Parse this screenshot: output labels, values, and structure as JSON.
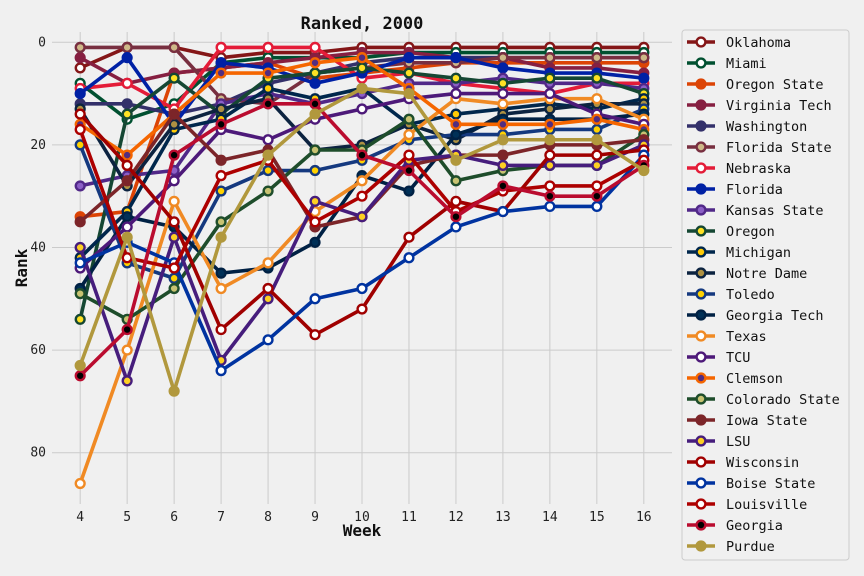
{
  "chart_data": {
    "type": "line",
    "title": "Ranked, 2000",
    "xlabel": "Week",
    "ylabel": "Rank",
    "x": [
      4,
      5,
      6,
      7,
      8,
      9,
      10,
      11,
      12,
      13,
      14,
      15,
      16
    ],
    "xlim": [
      3.4,
      16.6
    ],
    "ylim": [
      -2,
      90
    ],
    "y_inverted": true,
    "yticks": [
      0,
      20,
      40,
      60,
      80
    ],
    "grid": true,
    "legend_position": "right",
    "series": [
      {
        "name": "Oklahoma",
        "line_color": "#841617",
        "marker_fill": "#ffffff",
        "values": [
          5,
          1,
          1,
          3,
          2,
          2,
          1,
          1,
          1,
          1,
          1,
          1,
          1
        ]
      },
      {
        "name": "Miami",
        "line_color": "#005030",
        "marker_fill": "#ffffff",
        "values": [
          8,
          15,
          12,
          4,
          3,
          3,
          3,
          2,
          2,
          2,
          2,
          2,
          2
        ]
      },
      {
        "name": "Oregon State",
        "line_color": "#dc4405",
        "marker_fill": "#dc4405",
        "values": [
          34,
          33,
          6,
          5,
          4,
          7,
          6,
          5,
          4,
          4,
          4,
          4,
          4
        ]
      },
      {
        "name": "Virginia Tech",
        "line_color": "#861f41",
        "marker_fill": "#861f41",
        "values": [
          3,
          8,
          6,
          5,
          4,
          3,
          2,
          2,
          3,
          3,
          5,
          5,
          6
        ]
      },
      {
        "name": "Washington",
        "line_color": "#33306a",
        "marker_fill": "#33306a",
        "values": [
          12,
          12,
          14,
          12,
          8,
          6,
          4,
          3,
          3,
          3,
          3,
          3,
          3
        ]
      },
      {
        "name": "Florida State",
        "line_color": "#782f40",
        "marker_fill": "#ceb888",
        "values": [
          1,
          1,
          1,
          11,
          12,
          6,
          5,
          4,
          4,
          3,
          3,
          3,
          3
        ]
      },
      {
        "name": "Nebraska",
        "line_color": "#e41c38",
        "marker_fill": "#ffffff",
        "values": [
          9,
          8,
          13,
          1,
          1,
          1,
          7,
          6,
          8,
          9,
          10,
          8,
          8
        ]
      },
      {
        "name": "Florida",
        "line_color": "#0021a5",
        "marker_fill": "#0021a5",
        "values": [
          10,
          3,
          16,
          4,
          5,
          8,
          6,
          3,
          3,
          5,
          6,
          6,
          7
        ]
      },
      {
        "name": "Kansas State",
        "line_color": "#512888",
        "marker_fill": "#8b5fc6",
        "values": [
          28,
          26,
          25,
          12,
          10,
          12,
          10,
          8,
          8,
          7,
          8,
          8,
          9
        ]
      },
      {
        "name": "Oregon",
        "line_color": "#154733",
        "marker_fill": "#fee123",
        "values": [
          54,
          14,
          7,
          14,
          7,
          6,
          5,
          6,
          7,
          8,
          7,
          7,
          10
        ]
      },
      {
        "name": "Michigan",
        "line_color": "#00274c",
        "marker_fill": "#ffcb05",
        "values": [
          42,
          33,
          17,
          15,
          9,
          11,
          9,
          16,
          14,
          13,
          12,
          13,
          11
        ]
      },
      {
        "name": "Notre Dame",
        "line_color": "#0c2340",
        "marker_fill": "#ae9142",
        "values": [
          13,
          28,
          16,
          13,
          11,
          21,
          20,
          16,
          19,
          14,
          13,
          12,
          12
        ]
      },
      {
        "name": "Toledo",
        "line_color": "#15397f",
        "marker_fill": "#ffd200",
        "values": [
          20,
          43,
          46,
          29,
          25,
          25,
          23,
          19,
          18,
          18,
          17,
          17,
          13
        ]
      },
      {
        "name": "Georgia Tech",
        "line_color": "#002144",
        "marker_fill": "#003057",
        "values": [
          48,
          34,
          36,
          45,
          44,
          39,
          26,
          29,
          18,
          15,
          15,
          15,
          14
        ]
      },
      {
        "name": "Texas",
        "line_color": "#f08a24",
        "marker_fill": "#ffffff",
        "values": [
          86,
          60,
          31,
          48,
          43,
          33,
          27,
          18,
          11,
          12,
          11,
          11,
          15
        ]
      },
      {
        "name": "TCU",
        "line_color": "#4d1979",
        "marker_fill": "#ffffff",
        "values": [
          44,
          36,
          27,
          17,
          19,
          15,
          13,
          11,
          10,
          10,
          10,
          14,
          16
        ]
      },
      {
        "name": "Clemson",
        "line_color": "#f56600",
        "marker_fill": "#522d80",
        "values": [
          16,
          22,
          14,
          6,
          6,
          4,
          3,
          9,
          16,
          16,
          16,
          15,
          17
        ]
      },
      {
        "name": "Colorado State",
        "line_color": "#1e4d2b",
        "marker_fill": "#c8c372",
        "values": [
          49,
          54,
          48,
          35,
          29,
          21,
          21,
          15,
          27,
          25,
          24,
          24,
          18
        ]
      },
      {
        "name": "Iowa State",
        "line_color": "#7c2529",
        "marker_fill": "#7c2529",
        "values": [
          35,
          27,
          14,
          23,
          21,
          36,
          34,
          24,
          22,
          22,
          20,
          20,
          19
        ]
      },
      {
        "name": "LSU",
        "line_color": "#461d7c",
        "marker_fill": "#fdd023",
        "values": [
          40,
          66,
          38,
          62,
          50,
          31,
          34,
          23,
          22,
          24,
          24,
          24,
          20
        ]
      },
      {
        "name": "Wisconsin",
        "line_color": "#a00000",
        "marker_fill": "#ffffff",
        "values": [
          14,
          24,
          35,
          56,
          48,
          57,
          52,
          38,
          31,
          33,
          22,
          22,
          21
        ]
      },
      {
        "name": "Boise State",
        "line_color": "#0033a0",
        "marker_fill": "#ffffff",
        "values": [
          43,
          39,
          43,
          64,
          58,
          50,
          48,
          42,
          36,
          33,
          32,
          32,
          22
        ]
      },
      {
        "name": "Louisville",
        "line_color": "#ad0000",
        "marker_fill": "#ffffff",
        "values": [
          17,
          42,
          44,
          26,
          23,
          35,
          30,
          22,
          33,
          29,
          28,
          28,
          23
        ]
      },
      {
        "name": "Georgia",
        "line_color": "#ba0c2f",
        "marker_fill": "#000000",
        "values": [
          65,
          56,
          22,
          16,
          12,
          12,
          22,
          25,
          34,
          28,
          30,
          30,
          24
        ]
      },
      {
        "name": "Purdue",
        "line_color": "#b1983d",
        "marker_fill": "#b1983d",
        "values": [
          63,
          38,
          68,
          38,
          22,
          14,
          9,
          10,
          23,
          19,
          19,
          19,
          25
        ]
      }
    ]
  }
}
